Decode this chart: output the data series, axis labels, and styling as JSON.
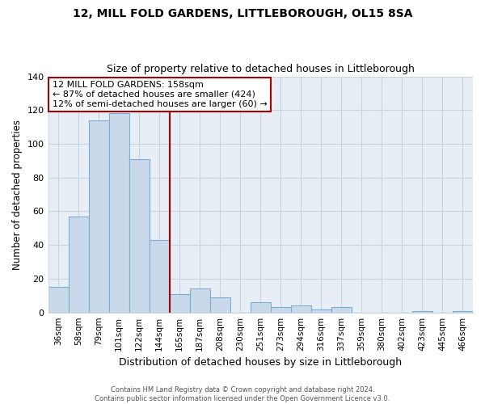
{
  "title": "12, MILL FOLD GARDENS, LITTLEBOROUGH, OL15 8SA",
  "subtitle": "Size of property relative to detached houses in Littleborough",
  "xlabel": "Distribution of detached houses by size in Littleborough",
  "ylabel": "Number of detached properties",
  "bin_labels": [
    "36sqm",
    "58sqm",
    "79sqm",
    "101sqm",
    "122sqm",
    "144sqm",
    "165sqm",
    "187sqm",
    "208sqm",
    "230sqm",
    "251sqm",
    "273sqm",
    "294sqm",
    "316sqm",
    "337sqm",
    "359sqm",
    "380sqm",
    "402sqm",
    "423sqm",
    "445sqm",
    "466sqm"
  ],
  "bar_heights": [
    15,
    57,
    114,
    118,
    91,
    43,
    11,
    14,
    9,
    0,
    6,
    3,
    4,
    2,
    3,
    0,
    0,
    0,
    1,
    0,
    1
  ],
  "bar_color": "#c9d9ea",
  "bar_edge_color": "#7baed4",
  "vline_x_index": 5.5,
  "vline_color": "#aa0000",
  "annotation_text": "12 MILL FOLD GARDENS: 158sqm\n← 87% of detached houses are smaller (424)\n12% of semi-detached houses are larger (60) →",
  "annotation_box_edge_color": "#aa0000",
  "ylim": [
    0,
    140
  ],
  "yticks": [
    0,
    20,
    40,
    60,
    80,
    100,
    120,
    140
  ],
  "footer_line1": "Contains HM Land Registry data © Crown copyright and database right 2024.",
  "footer_line2": "Contains public sector information licensed under the Open Government Licence v3.0.",
  "background_color": "#ffffff",
  "plot_bg_color": "#e8eef5",
  "grid_color": "#c8d4e0"
}
